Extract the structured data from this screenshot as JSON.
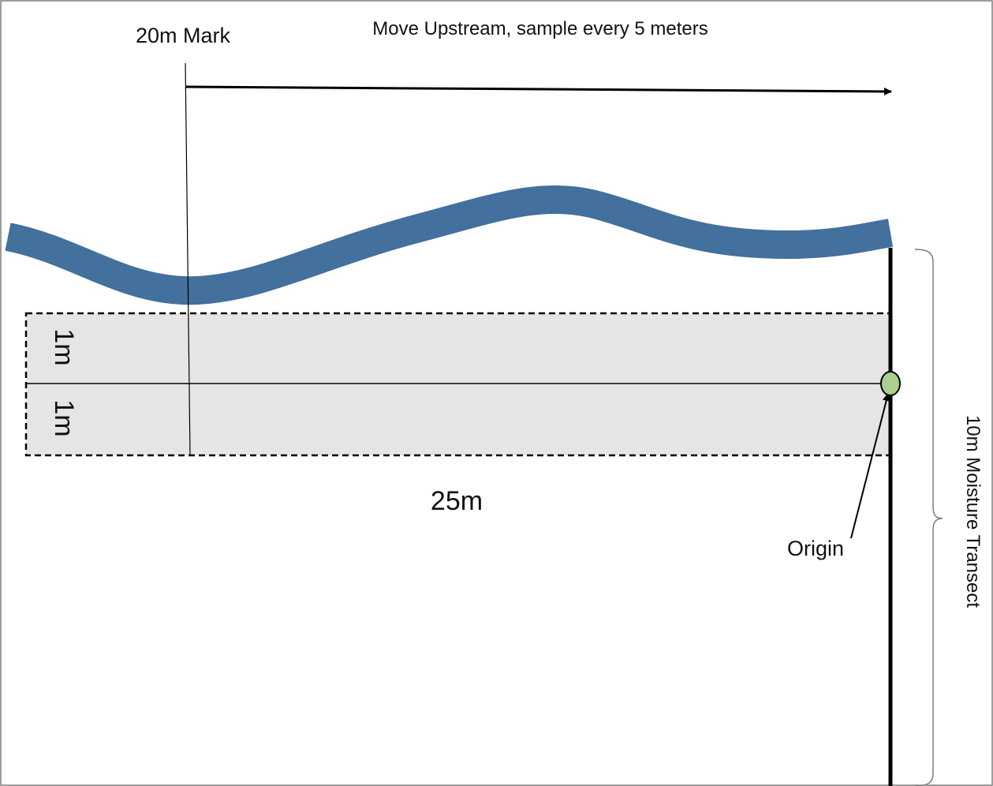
{
  "diagram": {
    "direction_label": "Move Upstream, sample every 5 meters",
    "mark_label": "20m Mark",
    "plot_width_label": "25m",
    "half_width_upper_label": "1m",
    "half_width_lower_label": "1m",
    "origin_label": "Origin",
    "transect_label": "10m Moisture Transect"
  },
  "colors": {
    "stream": "#43709C",
    "plot_fill": "#E5E5E5",
    "origin_marker": "#A9D08E",
    "line": "#000000"
  }
}
